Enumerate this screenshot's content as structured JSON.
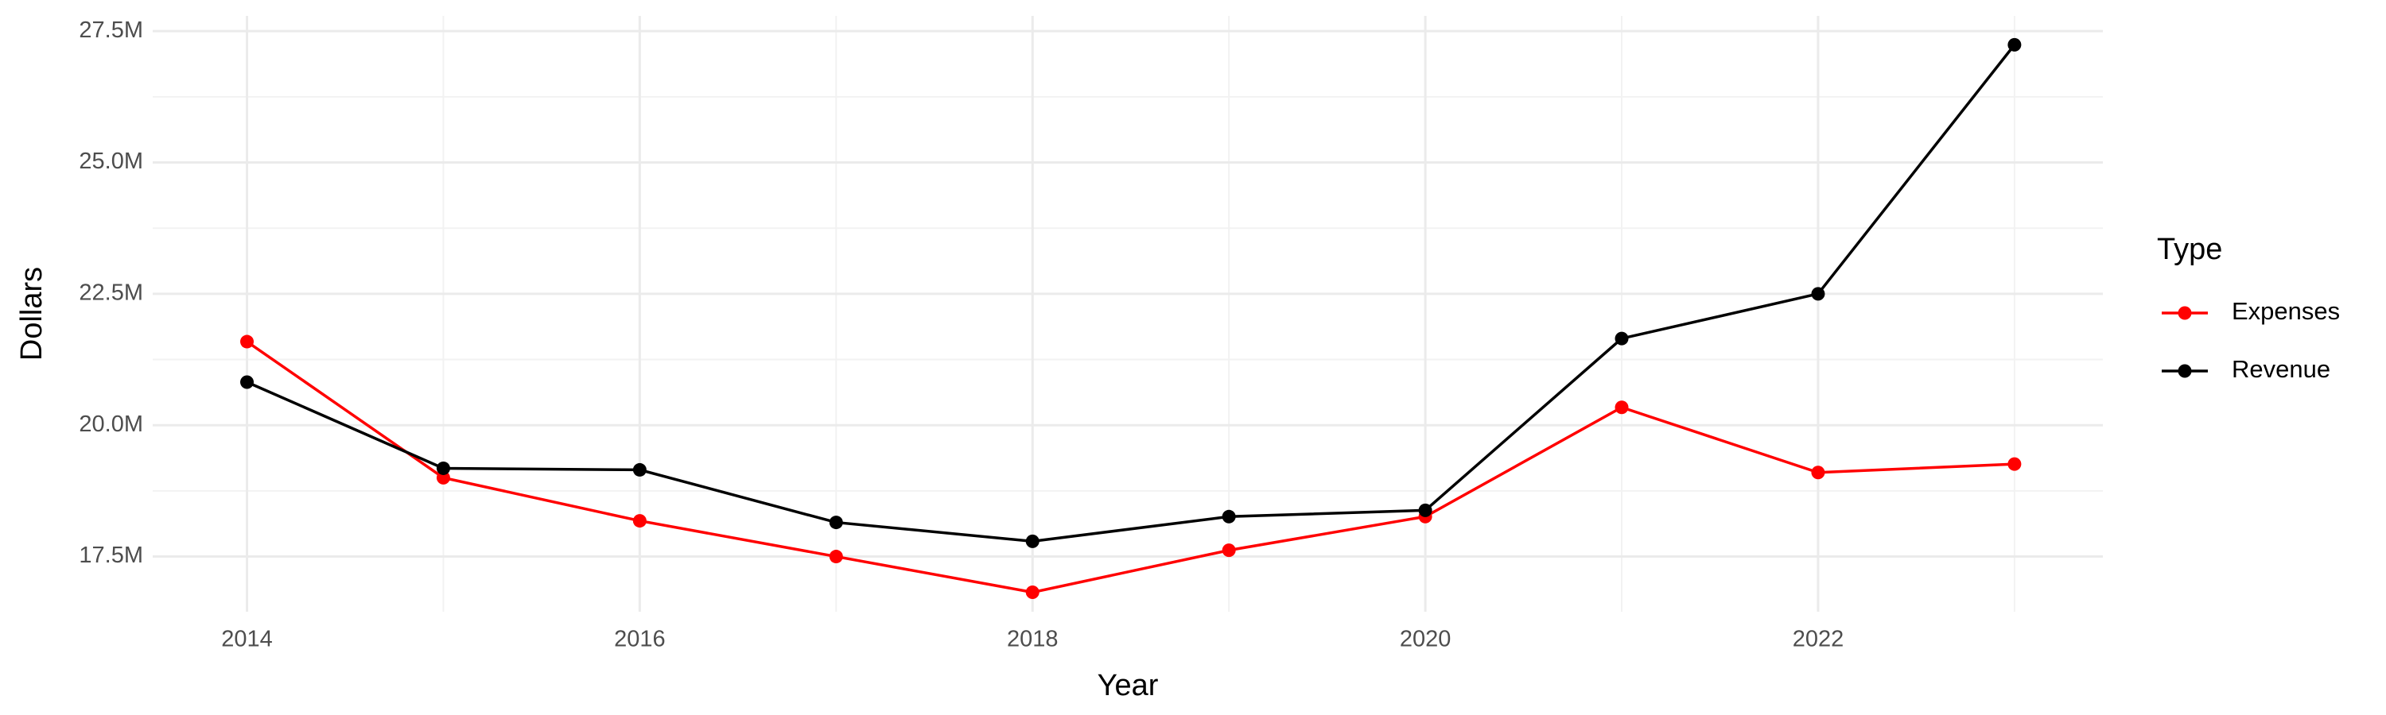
{
  "chart_data": {
    "type": "line",
    "x_label": "Year",
    "y_label": "Dollars",
    "legend_title": "Type",
    "legend_position": "right",
    "grid": true,
    "x": [
      2014,
      2015,
      2016,
      2017,
      2018,
      2019,
      2020,
      2021,
      2022,
      2023
    ],
    "series": [
      {
        "name": "Expenses",
        "color": "#ff0000",
        "values": [
          21590000,
          19000000,
          18180000,
          17500000,
          16820000,
          17620000,
          18260000,
          20340000,
          19100000,
          19260000
        ]
      },
      {
        "name": "Revenue",
        "color": "#000000",
        "values": [
          20820000,
          19180000,
          19150000,
          18150000,
          17790000,
          18260000,
          18380000,
          21650000,
          22500000,
          27240000
        ]
      }
    ],
    "xlim": [
      2013.52,
      2023.45
    ],
    "xticks": [
      2014,
      2016,
      2018,
      2020,
      2022
    ],
    "ylim": [
      16450000,
      27790000
    ],
    "yticks": [
      {
        "value": 17500000,
        "label": "17.5M"
      },
      {
        "value": 20000000,
        "label": "20.0M"
      },
      {
        "value": 22500000,
        "label": "22.5M"
      },
      {
        "value": 25000000,
        "label": "25.0M"
      },
      {
        "value": 27500000,
        "label": "27.5M"
      }
    ]
  }
}
